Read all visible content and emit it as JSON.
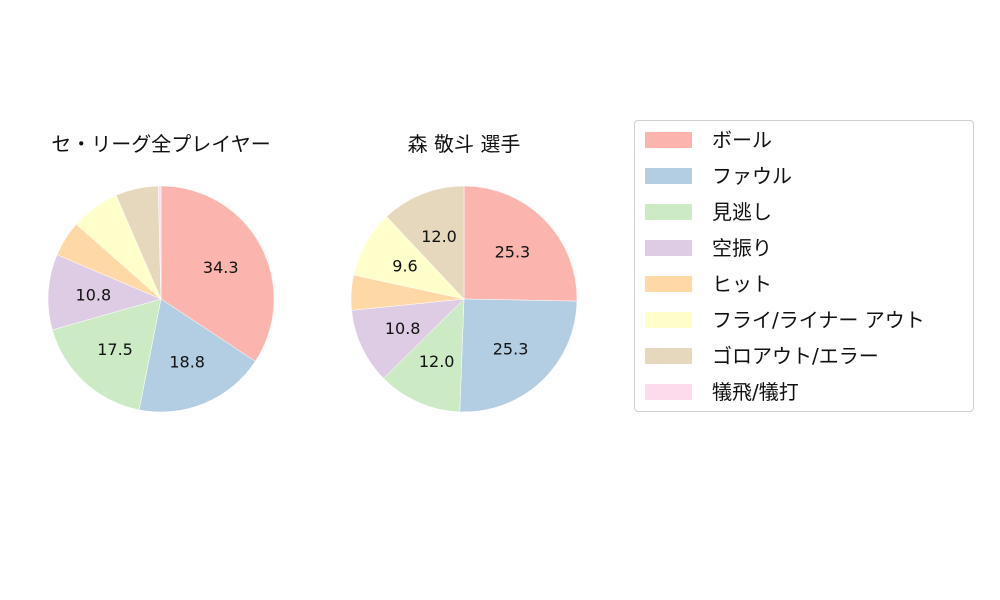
{
  "chart_data": [
    {
      "type": "pie",
      "title": "セ・リーグ全プレイヤー",
      "categories": [
        "ボール",
        "ファウル",
        "見逃し",
        "空振り",
        "ヒット",
        "フライ/ライナー アウト",
        "ゴロアウト/エラー",
        "犠飛/犠打"
      ],
      "values": [
        34.3,
        18.8,
        17.5,
        10.8,
        5.1,
        7.0,
        6.1,
        0.4
      ],
      "labels_shown": [
        "34.3",
        "18.8",
        "17.5",
        "10.8",
        "",
        "",
        "",
        ""
      ],
      "start_angle": 90,
      "direction": "clockwise"
    },
    {
      "type": "pie",
      "title": "森 敬斗  選手",
      "categories": [
        "ボール",
        "ファウル",
        "見逃し",
        "空振り",
        "ヒット",
        "フライ/ライナー アウト",
        "ゴロアウト/エラー",
        "犠飛/犠打"
      ],
      "values": [
        25.3,
        25.3,
        12.0,
        10.8,
        5.0,
        9.6,
        12.0,
        0.0
      ],
      "labels_shown": [
        "25.3",
        "25.3",
        "12.0",
        "10.8",
        "",
        "9.6",
        "12.0",
        ""
      ],
      "start_angle": 90,
      "direction": "clockwise"
    }
  ],
  "charts": [
    {
      "title": "セ・リーグ全プレイヤー"
    },
    {
      "title": "森 敬斗  選手"
    }
  ],
  "legend": {
    "items": [
      {
        "label": "ボール",
        "color": "#fbb4ae"
      },
      {
        "label": "ファウル",
        "color": "#b3cde3"
      },
      {
        "label": "見逃し",
        "color": "#ccebc5"
      },
      {
        "label": "空振り",
        "color": "#decbe4"
      },
      {
        "label": "ヒット",
        "color": "#fed9a6"
      },
      {
        "label": "フライ/ライナー アウト",
        "color": "#ffffcc"
      },
      {
        "label": "ゴロアウト/エラー",
        "color": "#e5d8bd"
      },
      {
        "label": "犠飛/犠打",
        "color": "#fddaec"
      }
    ]
  }
}
